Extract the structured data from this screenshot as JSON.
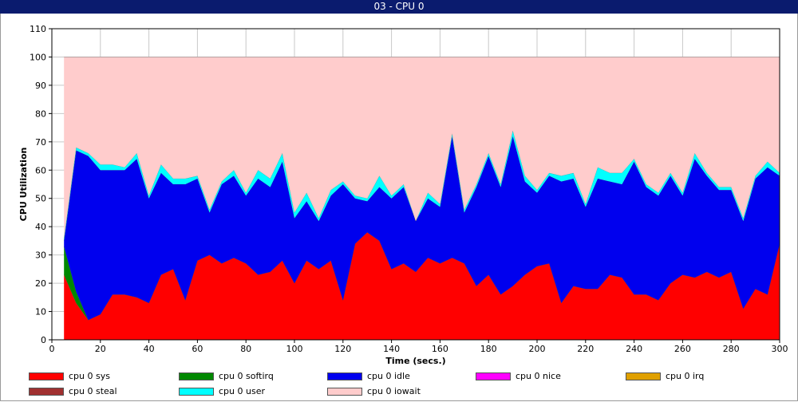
{
  "window": {
    "title": "03 - CPU 0"
  },
  "chart_data": {
    "type": "area",
    "stacked": true,
    "xlabel": "Time (secs.)",
    "ylabel": "CPU Utilization",
    "xlim": [
      0,
      300
    ],
    "ylim": [
      0,
      110
    ],
    "xticks": [
      0,
      20,
      40,
      60,
      80,
      100,
      120,
      140,
      160,
      180,
      200,
      220,
      240,
      260,
      280,
      300
    ],
    "yticks": [
      0,
      10,
      20,
      30,
      40,
      50,
      60,
      70,
      80,
      90,
      100,
      110
    ],
    "grid": true,
    "legend_position": "bottom",
    "x": [
      5,
      10,
      15,
      20,
      25,
      30,
      35,
      40,
      45,
      50,
      55,
      60,
      65,
      70,
      75,
      80,
      85,
      90,
      95,
      100,
      105,
      110,
      115,
      120,
      125,
      130,
      135,
      140,
      145,
      150,
      155,
      160,
      165,
      170,
      175,
      180,
      185,
      190,
      195,
      200,
      205,
      210,
      215,
      220,
      225,
      230,
      235,
      240,
      245,
      250,
      255,
      260,
      265,
      270,
      275,
      280,
      285,
      290,
      295,
      300
    ],
    "series": [
      {
        "name": "cpu 0 sys",
        "color": "#ff0000",
        "values": [
          23,
          13,
          7,
          9,
          16,
          16,
          15,
          13,
          23,
          25,
          14,
          28,
          30,
          27,
          29,
          27,
          23,
          24,
          28,
          20,
          28,
          25,
          28,
          14,
          34,
          38,
          35,
          25,
          27,
          24,
          29,
          27,
          29,
          27,
          19,
          23,
          16,
          19,
          23,
          26,
          27,
          13,
          19,
          18,
          18,
          23,
          22,
          16,
          16,
          14,
          20,
          23,
          22,
          24,
          22,
          24,
          11,
          18,
          16,
          34
        ]
      },
      {
        "name": "cpu 0 softirq",
        "color": "#008800",
        "values": [
          10,
          4,
          0,
          0,
          0,
          0,
          0,
          0,
          0,
          0,
          0,
          0,
          0,
          0,
          0,
          0,
          0,
          0,
          0,
          0,
          0,
          0,
          0,
          0,
          0,
          0,
          0,
          0,
          0,
          0,
          0,
          0,
          0,
          0,
          0,
          0,
          0,
          0,
          0,
          0,
          0,
          0,
          0,
          0,
          0,
          0,
          0,
          0,
          0,
          0,
          0,
          0,
          0,
          0,
          0,
          0,
          0,
          0,
          0,
          0
        ]
      },
      {
        "name": "cpu 0 idle",
        "color": "#0000ee",
        "values": [
          2,
          50,
          58,
          51,
          44,
          44,
          49,
          37,
          36,
          30,
          41,
          29,
          15,
          28,
          29,
          24,
          34,
          30,
          35,
          23,
          21,
          17,
          23,
          41,
          16,
          11,
          19,
          25,
          27,
          18,
          21,
          20,
          43,
          18,
          35,
          42,
          38,
          53,
          33,
          26,
          31,
          43,
          38,
          29,
          39,
          33,
          33,
          47,
          38,
          37,
          38,
          28,
          42,
          34,
          31,
          29,
          31,
          39,
          45,
          24
        ]
      },
      {
        "name": "cpu 0 nice",
        "color": "#ff00ff",
        "values": [
          0,
          0,
          0,
          0,
          0,
          0,
          0,
          0,
          0,
          0,
          0,
          0,
          0,
          0,
          0,
          0,
          0,
          0,
          0,
          0,
          0,
          0,
          0,
          0,
          0,
          0,
          0,
          0,
          0,
          0,
          0,
          0,
          0,
          0,
          0,
          0,
          0,
          0,
          0,
          0,
          0,
          0,
          0,
          0,
          0,
          0,
          0,
          0,
          0,
          0,
          0,
          0,
          0,
          0,
          0,
          0,
          0,
          0,
          0,
          0
        ]
      },
      {
        "name": "cpu 0 irq",
        "color": "#e0a000",
        "values": [
          0,
          0,
          0,
          0,
          0,
          0,
          0,
          0,
          0,
          0,
          0,
          0,
          0,
          0,
          0,
          0,
          0,
          0,
          0,
          0,
          0,
          0,
          0,
          0,
          0,
          0,
          0,
          0,
          0,
          0,
          0,
          0,
          0,
          0,
          0,
          0,
          0,
          0,
          0,
          0,
          0,
          0,
          0,
          0,
          0,
          0,
          0,
          0,
          0,
          0,
          0,
          0,
          0,
          0,
          0,
          0,
          0,
          0,
          0,
          0
        ]
      },
      {
        "name": "cpu 0 steal",
        "color": "#a03030",
        "values": [
          0,
          0,
          0,
          0,
          0,
          0,
          0,
          0,
          0,
          0,
          0,
          0,
          0,
          0,
          0,
          0,
          0,
          0,
          0,
          0,
          0,
          0,
          0,
          0,
          0,
          0,
          0,
          0,
          0,
          0,
          0,
          0,
          0,
          0,
          0,
          0,
          0,
          0,
          0,
          0,
          0,
          0,
          0,
          0,
          0,
          0,
          0,
          0,
          0,
          0,
          0,
          0,
          0,
          0,
          0,
          0,
          0,
          0,
          0,
          0
        ]
      },
      {
        "name": "cpu 0 user",
        "color": "#00ffff",
        "values": [
          1,
          1,
          1,
          2,
          2,
          1,
          2,
          1,
          3,
          2,
          2,
          1,
          1,
          1,
          2,
          1,
          3,
          3,
          3,
          2,
          3,
          1,
          2,
          1,
          1,
          1,
          4,
          1,
          1,
          0,
          2,
          1,
          1,
          1,
          1,
          1,
          1,
          2,
          2,
          1,
          1,
          2,
          2,
          1,
          4,
          3,
          4,
          1,
          1,
          1,
          1,
          1,
          2,
          1,
          1,
          1,
          1,
          1,
          2,
          1
        ]
      },
      {
        "name": "cpu 0 iowait",
        "color": "#ffcccc",
        "values": [
          64,
          32,
          34,
          38,
          38,
          39,
          34,
          49,
          38,
          43,
          43,
          42,
          54,
          44,
          40,
          48,
          40,
          43,
          34,
          55,
          48,
          57,
          47,
          44,
          49,
          50,
          42,
          49,
          45,
          58,
          48,
          52,
          27,
          54,
          45,
          34,
          45,
          26,
          42,
          47,
          41,
          42,
          41,
          52,
          39,
          41,
          41,
          36,
          45,
          48,
          41,
          48,
          34,
          41,
          46,
          46,
          57,
          42,
          37,
          41
        ]
      }
    ]
  }
}
